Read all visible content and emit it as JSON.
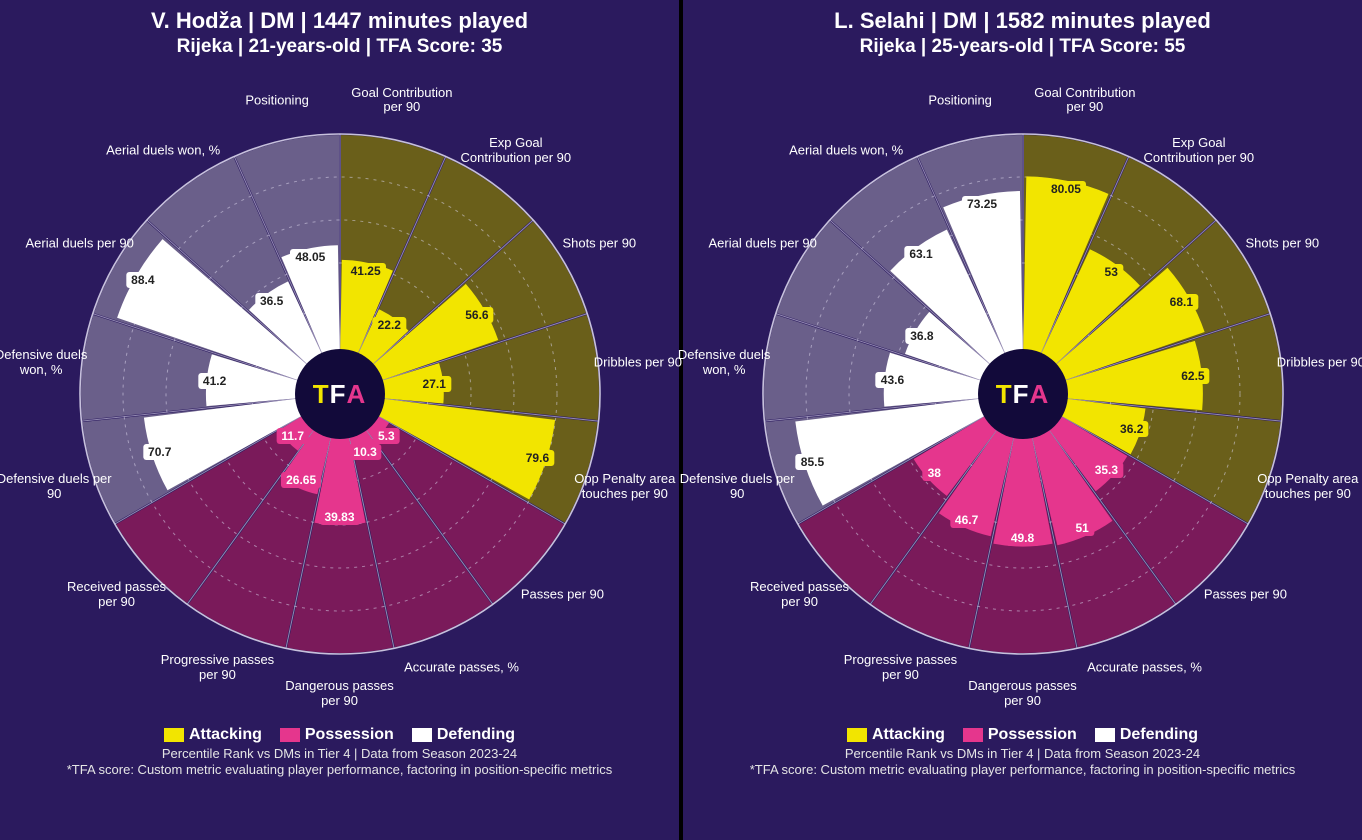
{
  "colors": {
    "bg_panel": "#2b1a5e",
    "attacking_fill": "#f2e500",
    "attacking_sector": "#6a5f1a",
    "possession_fill": "#e5368d",
    "possession_sector": "#7a1a5a",
    "defending_fill": "#ffffff",
    "defending_sector": "#6a5f8a",
    "grid": "#d8d4ea",
    "logo_bg": "#120a3a",
    "logo_yellow": "#f2e500",
    "logo_pink": "#e5368d"
  },
  "chart": {
    "type": "polar-bar",
    "radius_outer": 260,
    "radius_inner": 45,
    "grid_rings": [
      0.2,
      0.4,
      0.6,
      0.8,
      1.0
    ],
    "slice_angle_deg": 22.5,
    "start_angle_deg": -90,
    "label_radius": 300,
    "metrics": [
      {
        "key": "goal_contrib",
        "label": "Goal Contribution per 90",
        "group": "attacking"
      },
      {
        "key": "xg_contrib",
        "label": "Exp Goal Contribution per 90",
        "group": "attacking"
      },
      {
        "key": "shots",
        "label": "Shots per 90",
        "group": "attacking"
      },
      {
        "key": "dribbles",
        "label": "Dribbles per 90",
        "group": "attacking"
      },
      {
        "key": "opp_box_touches",
        "label": "Opp Penalty area touches per 90",
        "group": "attacking"
      },
      {
        "key": "passes",
        "label": "Passes per 90",
        "group": "possession"
      },
      {
        "key": "acc_passes",
        "label": "Accurate passes, %",
        "group": "possession"
      },
      {
        "key": "dangerous_passes",
        "label": "Dangerous passes per 90",
        "group": "possession"
      },
      {
        "key": "prog_passes",
        "label": "Progressive passes per 90",
        "group": "possession"
      },
      {
        "key": "recv_passes",
        "label": "Received passes per 90",
        "group": "possession"
      },
      {
        "key": "def_duels",
        "label": "Defensive duels per 90",
        "group": "defending"
      },
      {
        "key": "def_duels_won",
        "label": "Defensive duels won, %",
        "group": "defending"
      },
      {
        "key": "aerial_duels",
        "label": "Aerial duels per 90",
        "group": "defending"
      },
      {
        "key": "aerial_duels_won",
        "label": "Aerial duels won, %",
        "group": "defending"
      },
      {
        "key": "positioning",
        "label": "Positioning",
        "group": "defending"
      }
    ]
  },
  "legend": {
    "attacking": "Attacking",
    "possession": "Possession",
    "defending": "Defending"
  },
  "footnote1": "Percentile Rank vs DMs in Tier 4 | Data from Season 2023-24",
  "footnote2": "*TFA score: Custom metric evaluating player performance, factoring in position-specific metrics",
  "center_logo": "TFA",
  "players": [
    {
      "title": "V. Hodža | DM | 1447 minutes played",
      "subtitle": "Rijeka | 21-years-old | TFA Score: 35",
      "values": {
        "goal_contrib": 41.25,
        "xg_contrib": 22.2,
        "shots": 56.6,
        "dribbles": 27.1,
        "opp_box_touches": 79.6,
        "passes": 5.3,
        "acc_passes": 10.3,
        "dangerous_passes": 39.83,
        "prog_passes": 26.65,
        "recv_passes": 11.7,
        "def_duels": 70.7,
        "def_duels_won": 41.2,
        "aerial_duels": 88.4,
        "aerial_duels_won": 36.5,
        "positioning": 48.05
      }
    },
    {
      "title": "L. Selahi | DM | 1582 minutes played",
      "subtitle": "Rijeka | 25-years-old | TFA Score: 55",
      "values": {
        "goal_contrib": 80.05,
        "xg_contrib": 53.0,
        "shots": 68.1,
        "dribbles": 62.5,
        "opp_box_touches": 36.2,
        "passes": 35.3,
        "acc_passes": 51.0,
        "dangerous_passes": 49.8,
        "prog_passes": 46.7,
        "recv_passes": 38.0,
        "def_duels": 85.5,
        "def_duels_won": 43.6,
        "aerial_duels": 36.8,
        "aerial_duels_won": 63.1,
        "positioning": 73.25
      }
    }
  ]
}
